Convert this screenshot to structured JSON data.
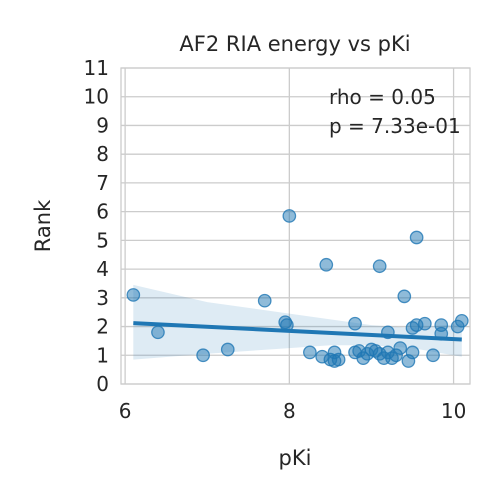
{
  "chart_data": {
    "type": "scatter",
    "title": "AF2 RIA energy vs pKi",
    "xlabel": "pKi",
    "ylabel": "Rank",
    "xlim": [
      5.95,
      10.2
    ],
    "ylim": [
      0,
      11
    ],
    "xticks": [
      6,
      8,
      10
    ],
    "yticks": [
      0,
      1,
      2,
      3,
      4,
      5,
      6,
      7,
      8,
      9,
      10,
      11
    ],
    "grid": true,
    "colors": {
      "points": "#1f77b4",
      "line": "#1f77b4",
      "band": "#1f77b4",
      "grid": "#cccccc"
    },
    "annotations": [
      "rho = 0.05",
      "p = 7.33e-01"
    ],
    "points": [
      {
        "x": 6.1,
        "y": 3.1
      },
      {
        "x": 6.4,
        "y": 1.8
      },
      {
        "x": 6.95,
        "y": 1.0
      },
      {
        "x": 7.25,
        "y": 1.2
      },
      {
        "x": 7.7,
        "y": 2.9
      },
      {
        "x": 7.95,
        "y": 2.15
      },
      {
        "x": 7.97,
        "y": 2.05
      },
      {
        "x": 8.0,
        "y": 5.85
      },
      {
        "x": 8.25,
        "y": 1.1
      },
      {
        "x": 8.4,
        "y": 0.95
      },
      {
        "x": 8.45,
        "y": 4.15
      },
      {
        "x": 8.5,
        "y": 0.85
      },
      {
        "x": 8.55,
        "y": 0.8
      },
      {
        "x": 8.55,
        "y": 1.1
      },
      {
        "x": 8.6,
        "y": 0.85
      },
      {
        "x": 8.8,
        "y": 2.1
      },
      {
        "x": 8.8,
        "y": 1.1
      },
      {
        "x": 8.85,
        "y": 1.15
      },
      {
        "x": 8.9,
        "y": 0.9
      },
      {
        "x": 8.95,
        "y": 1.05
      },
      {
        "x": 9.0,
        "y": 1.2
      },
      {
        "x": 9.05,
        "y": 1.15
      },
      {
        "x": 9.1,
        "y": 1.05
      },
      {
        "x": 9.1,
        "y": 4.1
      },
      {
        "x": 9.15,
        "y": 0.9
      },
      {
        "x": 9.2,
        "y": 1.1
      },
      {
        "x": 9.2,
        "y": 1.8
      },
      {
        "x": 9.25,
        "y": 0.9
      },
      {
        "x": 9.3,
        "y": 1.0
      },
      {
        "x": 9.35,
        "y": 1.25
      },
      {
        "x": 9.4,
        "y": 3.05
      },
      {
        "x": 9.45,
        "y": 0.8
      },
      {
        "x": 9.5,
        "y": 1.1
      },
      {
        "x": 9.5,
        "y": 1.95
      },
      {
        "x": 9.55,
        "y": 2.05
      },
      {
        "x": 9.55,
        "y": 5.1
      },
      {
        "x": 9.65,
        "y": 2.1
      },
      {
        "x": 9.75,
        "y": 1.0
      },
      {
        "x": 9.85,
        "y": 2.05
      },
      {
        "x": 9.85,
        "y": 1.75
      },
      {
        "x": 10.05,
        "y": 2.0
      },
      {
        "x": 10.1,
        "y": 2.2
      }
    ],
    "regression": {
      "x": [
        6.1,
        10.1
      ],
      "y": [
        2.12,
        1.55
      ]
    },
    "ci_band": {
      "x": [
        6.1,
        7.0,
        8.0,
        8.5,
        9.0,
        9.5,
        10.1
      ],
      "upper": [
        3.45,
        2.85,
        2.45,
        2.25,
        2.05,
        1.95,
        2.1
      ],
      "lower": [
        0.85,
        1.05,
        1.25,
        1.35,
        1.35,
        1.25,
        0.95
      ]
    }
  }
}
